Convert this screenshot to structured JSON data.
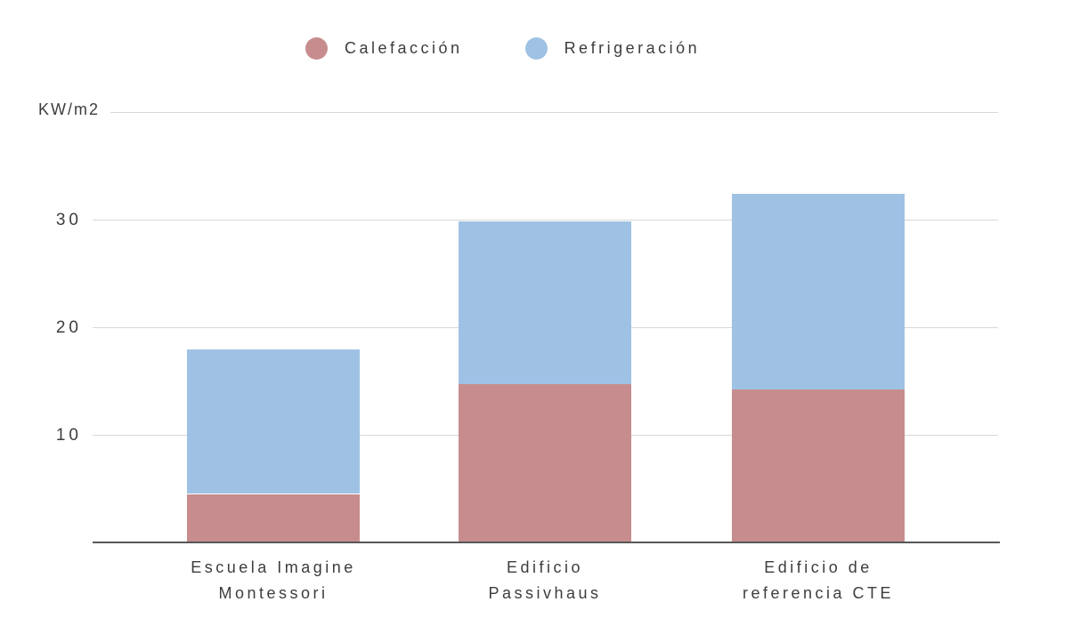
{
  "chart": {
    "y_unit_label": "KW/m2",
    "colors": {
      "calefaccion": "#c78d8e",
      "refrigeracion": "#9fc2e4",
      "gridline": "#d8d8d8",
      "axis_line": "#575757",
      "text": "#3d3d3d"
    }
  },
  "legend": {
    "items": [
      {
        "label": "Calefacción",
        "color": "#c78d8e"
      },
      {
        "label": "Refrigeración",
        "color": "#9fc2e4"
      }
    ]
  },
  "chart_data": {
    "type": "bar",
    "stacked": true,
    "title": "",
    "ylabel": "KW/m2",
    "xlabel": "",
    "ylim": [
      0,
      40
    ],
    "yticks": [
      10,
      20,
      30
    ],
    "grid": true,
    "legend_position": "top",
    "categories": [
      "Escuela Imagine Montessori",
      "Edificio Passivhaus",
      "Edificio de referencia CTE"
    ],
    "category_lines": [
      [
        "Escuela Imagine",
        "Montessori"
      ],
      [
        "Edificio",
        "Passivhaus"
      ],
      [
        "Edificio de",
        "referencia CTE"
      ]
    ],
    "series": [
      {
        "name": "Calefacción",
        "color": "#c78d8e",
        "values": [
          4.5,
          14.7,
          14.2
        ]
      },
      {
        "name": "Refrigeración",
        "color": "#9fc2e4",
        "values": [
          13.4,
          15.1,
          18.2
        ]
      }
    ]
  }
}
